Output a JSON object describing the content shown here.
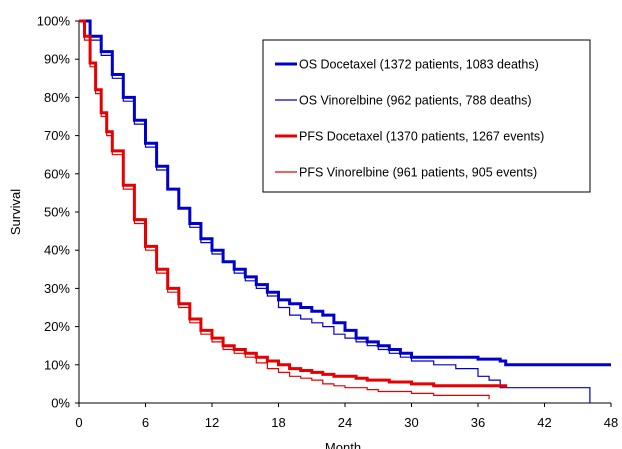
{
  "chart_data": {
    "type": "line",
    "title": "",
    "xlabel": "Month",
    "ylabel": "Survival",
    "xlim": [
      0,
      48
    ],
    "ylim": [
      0,
      100
    ],
    "x_ticks": [
      0,
      6,
      12,
      18,
      24,
      30,
      36,
      42,
      48
    ],
    "y_ticks": [
      0,
      10,
      20,
      30,
      40,
      50,
      60,
      70,
      80,
      90,
      100
    ],
    "x_tick_labels": [
      "0",
      "6",
      "12",
      "18",
      "24",
      "30",
      "36",
      "42",
      "48"
    ],
    "y_tick_labels": [
      "0%",
      "10%",
      "20%",
      "30%",
      "40%",
      "50%",
      "60%",
      "70%",
      "80%",
      "90%",
      "100%"
    ],
    "grid": false,
    "legend_position": "top-right",
    "series": [
      {
        "name": "OS Docetaxel (1372 patients, 1083 deaths)",
        "color": "#0000cc",
        "stroke": "thick",
        "x": [
          0,
          1,
          2,
          3,
          4,
          5,
          6,
          7,
          8,
          9,
          10,
          11,
          12,
          13,
          14,
          15,
          16,
          17,
          18,
          19,
          20,
          21,
          22,
          23,
          24,
          25,
          26,
          27,
          28,
          29,
          30,
          32,
          34,
          36,
          38,
          38.5,
          40,
          42,
          44,
          46,
          48
        ],
        "y": [
          100,
          96,
          92,
          86,
          80,
          74,
          68,
          62,
          56,
          51,
          47,
          43,
          40,
          37,
          35,
          33,
          31,
          29,
          27,
          26,
          25,
          24,
          23,
          21,
          19,
          17,
          16,
          15,
          14,
          13,
          12,
          12,
          12,
          11.5,
          11,
          10,
          10,
          10,
          10,
          10,
          10
        ]
      },
      {
        "name": "OS Vinorelbine (962 patients, 788 deaths)",
        "color": "#0000cc",
        "stroke": "thin",
        "x": [
          0,
          1,
          2,
          3,
          4,
          5,
          6,
          7,
          8,
          9,
          10,
          11,
          12,
          13,
          14,
          15,
          16,
          17,
          18,
          19,
          20,
          21,
          22,
          23,
          24,
          25,
          26,
          27,
          28,
          29,
          30,
          32,
          34,
          36,
          37,
          38,
          40,
          42,
          44,
          46,
          46.1
        ],
        "y": [
          100,
          95,
          91,
          85,
          79,
          73,
          67,
          61,
          56,
          51,
          46,
          42,
          39,
          37,
          34,
          32,
          30,
          28,
          25,
          23,
          22,
          21,
          20,
          18,
          17,
          16,
          15,
          14,
          13,
          12,
          11,
          10,
          9,
          7,
          6,
          4,
          4,
          4,
          4,
          4,
          0
        ]
      },
      {
        "name": "PFS Docetaxel (1370 patients, 1267 events)",
        "color": "#e60000",
        "stroke": "thick",
        "x": [
          0,
          0.5,
          1,
          1.5,
          2,
          2.5,
          3,
          4,
          5,
          6,
          7,
          8,
          9,
          10,
          11,
          12,
          13,
          14,
          15,
          16,
          17,
          18,
          19,
          20,
          21,
          22,
          23,
          24,
          25,
          26,
          27,
          28,
          30,
          32,
          34,
          36,
          38,
          38.5
        ],
        "y": [
          100,
          96,
          89,
          82,
          76,
          71,
          66,
          57,
          48,
          41,
          35,
          30,
          26,
          22,
          19,
          17,
          15,
          14,
          13,
          12,
          11,
          10,
          9,
          8.5,
          8,
          7.5,
          7,
          7,
          6.5,
          6,
          6,
          5.5,
          5,
          4.5,
          4.5,
          4.5,
          4.5,
          4
        ]
      },
      {
        "name": "PFS Vinorelbine (961 patients, 905 events)",
        "color": "#e60000",
        "stroke": "thin",
        "x": [
          0,
          0.5,
          1,
          1.5,
          2,
          2.5,
          3,
          4,
          5,
          6,
          7,
          8,
          9,
          10,
          11,
          12,
          13,
          14,
          15,
          16,
          17,
          18,
          19,
          20,
          21,
          22,
          23,
          24,
          25,
          26,
          27,
          28,
          30,
          32,
          34,
          36,
          37
        ],
        "y": [
          100,
          95,
          88,
          81,
          75,
          70,
          65,
          56,
          47,
          40,
          34,
          29,
          25,
          21,
          18,
          16,
          14,
          13,
          12,
          10.5,
          9,
          8,
          7,
          6.5,
          6,
          5,
          4.5,
          4,
          4,
          3.5,
          3,
          3,
          2.5,
          2,
          2,
          2,
          1
        ]
      }
    ]
  }
}
